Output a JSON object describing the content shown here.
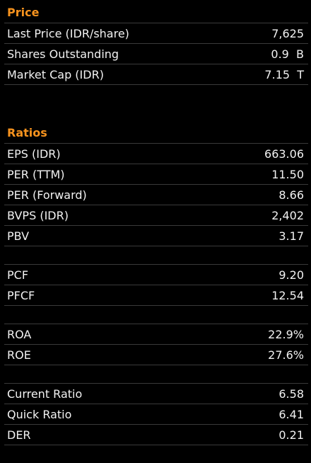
{
  "sections": [
    {
      "title": "Price",
      "groups": [
        [
          {
            "label": "Last Price (IDR/share)",
            "value": "7,625"
          },
          {
            "label": "Shares Outstanding",
            "value": "0.9  B"
          },
          {
            "label": "Market Cap (IDR)",
            "value": "7.15  T"
          }
        ]
      ]
    },
    {
      "title": "Ratios",
      "groups": [
        [
          {
            "label": "EPS (IDR)",
            "value": "663.06"
          },
          {
            "label": "PER (TTM)",
            "value": "11.50"
          },
          {
            "label": "PER (Forward)",
            "value": "8.66"
          },
          {
            "label": "BVPS (IDR)",
            "value": "2,402"
          },
          {
            "label": "PBV",
            "value": "3.17"
          }
        ],
        [
          {
            "label": "PCF",
            "value": "9.20"
          },
          {
            "label": "PFCF",
            "value": "12.54"
          }
        ],
        [
          {
            "label": "ROA",
            "value": "22.9%"
          },
          {
            "label": "ROE",
            "value": "27.6%"
          }
        ],
        [
          {
            "label": "Current Ratio",
            "value": "6.58"
          },
          {
            "label": "Quick Ratio",
            "value": "6.41"
          },
          {
            "label": "DER",
            "value": "0.21"
          }
        ]
      ]
    }
  ]
}
